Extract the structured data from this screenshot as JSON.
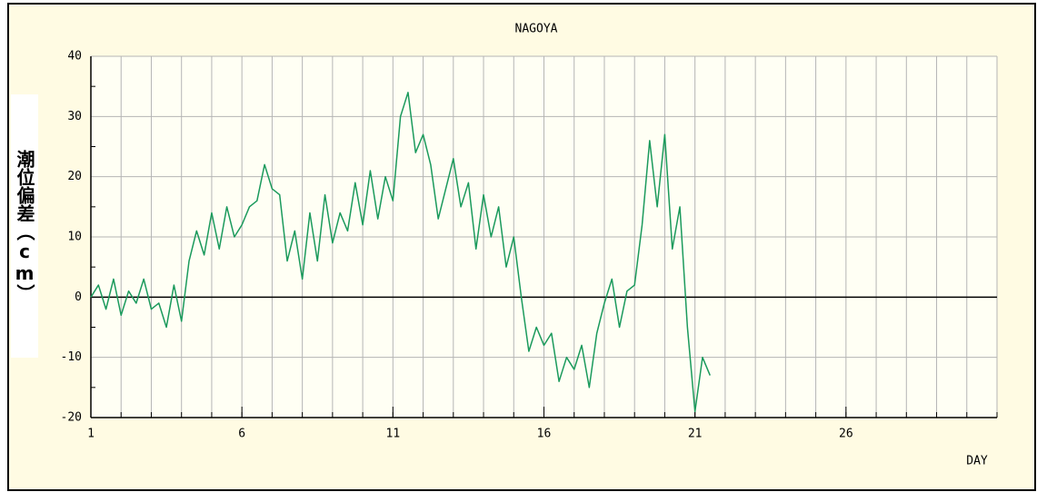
{
  "chart_data": {
    "type": "line",
    "title": "NAGOYA",
    "x_label": "DAY",
    "y_label": "潮位偏差（cm）",
    "xlim": [
      1,
      31
    ],
    "xticks": [
      1,
      6,
      11,
      16,
      21,
      26
    ],
    "ylim": [
      -20,
      40
    ],
    "yticks": [
      -20,
      -10,
      0,
      10,
      20,
      30,
      40
    ],
    "grid": true,
    "x": [
      1,
      1.25,
      1.5,
      1.75,
      2,
      2.25,
      2.5,
      2.75,
      3,
      3.25,
      3.5,
      3.75,
      4,
      4.25,
      4.5,
      4.75,
      5,
      5.25,
      5.5,
      5.75,
      6,
      6.25,
      6.5,
      6.75,
      7,
      7.25,
      7.5,
      7.75,
      8,
      8.25,
      8.5,
      8.75,
      9,
      9.25,
      9.5,
      9.75,
      10,
      10.25,
      10.5,
      10.75,
      11,
      11.25,
      11.5,
      11.75,
      12,
      12.25,
      12.5,
      12.75,
      13,
      13.25,
      13.5,
      13.75,
      14,
      14.25,
      14.5,
      14.75,
      15,
      15.25,
      15.5,
      15.75,
      16,
      16.25,
      16.5,
      16.75,
      17,
      17.25,
      17.5,
      17.75,
      18,
      18.25,
      18.5,
      18.75,
      19,
      19.25,
      19.5,
      19.75,
      20,
      20.25,
      20.5,
      20.75,
      21,
      21.25,
      21.5
    ],
    "series": [
      {
        "name": "NAGOYA",
        "color": "#1b9a5c",
        "values": [
          0,
          2,
          -2,
          3,
          -3,
          1,
          -1,
          3,
          -2,
          -1,
          -5,
          2,
          -4,
          6,
          11,
          7,
          14,
          8,
          15,
          10,
          12,
          15,
          16,
          22,
          18,
          17,
          6,
          11,
          3,
          14,
          6,
          17,
          9,
          14,
          11,
          19,
          12,
          21,
          13,
          20,
          16,
          30,
          34,
          24,
          27,
          22,
          13,
          18,
          23,
          15,
          19,
          8,
          17,
          10,
          15,
          5,
          10,
          0,
          -9,
          -5,
          -8,
          -6,
          -14,
          -10,
          -12,
          -8,
          -15,
          -6,
          -1,
          3,
          -5,
          1,
          2,
          12,
          26,
          15,
          27,
          8,
          15,
          -5,
          -19,
          -10,
          -13
        ]
      }
    ]
  }
}
